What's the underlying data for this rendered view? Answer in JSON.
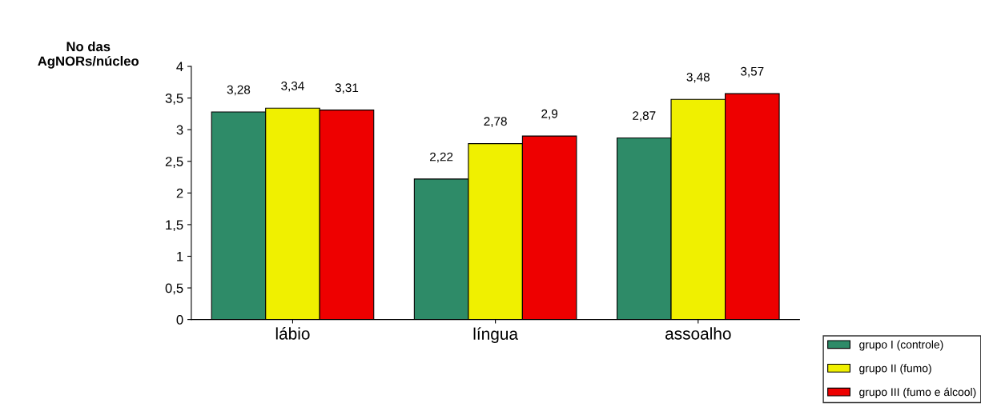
{
  "chart_data": {
    "type": "bar",
    "ylabel": "No das\nAgNORs/núcleo",
    "categories": [
      "lábio",
      "língua",
      "assoalho"
    ],
    "series": [
      {
        "name": "grupo I (controle)",
        "color": "#2e8b68",
        "values": [
          3.28,
          2.22,
          2.87
        ],
        "value_labels": [
          "3,28",
          "2,22",
          "2,87"
        ]
      },
      {
        "name": "grupo II (fumo)",
        "color": "#f0f000",
        "values": [
          3.34,
          2.78,
          3.48
        ],
        "value_labels": [
          "3,34",
          "2,78",
          "3,48"
        ]
      },
      {
        "name": "grupo III (fumo e álcool)",
        "color": "#ee0000",
        "values": [
          3.31,
          2.9,
          3.57
        ],
        "value_labels": [
          "3,31",
          "2,9",
          "3,57"
        ]
      }
    ],
    "ylim": [
      0,
      4
    ],
    "yticks": [
      0,
      {
        "value": 0.5,
        "label": "0,5"
      },
      1,
      {
        "value": 1.5,
        "label": "1,5"
      },
      2,
      {
        "value": 2.5,
        "label": "2,5"
      },
      3,
      {
        "value": 3.5,
        "label": "3,5"
      },
      4
    ],
    "grid": false,
    "legend": "bottom right"
  }
}
